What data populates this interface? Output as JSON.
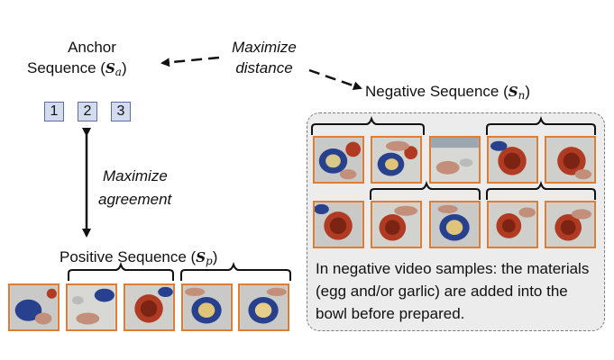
{
  "anchor": {
    "line1": "Anchor",
    "line2_prefix": "Sequence (",
    "symbol": "S",
    "subscript": "a",
    "suffix": ")",
    "boxes": [
      "1",
      "2",
      "3"
    ]
  },
  "maximize_distance": {
    "line1": "Maximize",
    "line2": "distance"
  },
  "maximize_agreement": {
    "line1": "Maximize",
    "line2": "agreement"
  },
  "negative": {
    "prefix": "Negative Sequence (",
    "symbol": "S",
    "subscript": "n",
    "suffix": ")",
    "note": "In negative video samples: the materials (egg and/or garlic) are added into the bowl before prepared."
  },
  "positive": {
    "prefix": "Positive Sequence (",
    "symbol": "S",
    "subscript": "p",
    "suffix": ")"
  },
  "colors": {
    "frame_border": "#e07d34",
    "id_box_fill": "#d3dcef",
    "panel_fill": "#ececec",
    "table": "#c9c9c7",
    "bowl_blue": "#27418f",
    "bowl_red": "#b03a22"
  }
}
